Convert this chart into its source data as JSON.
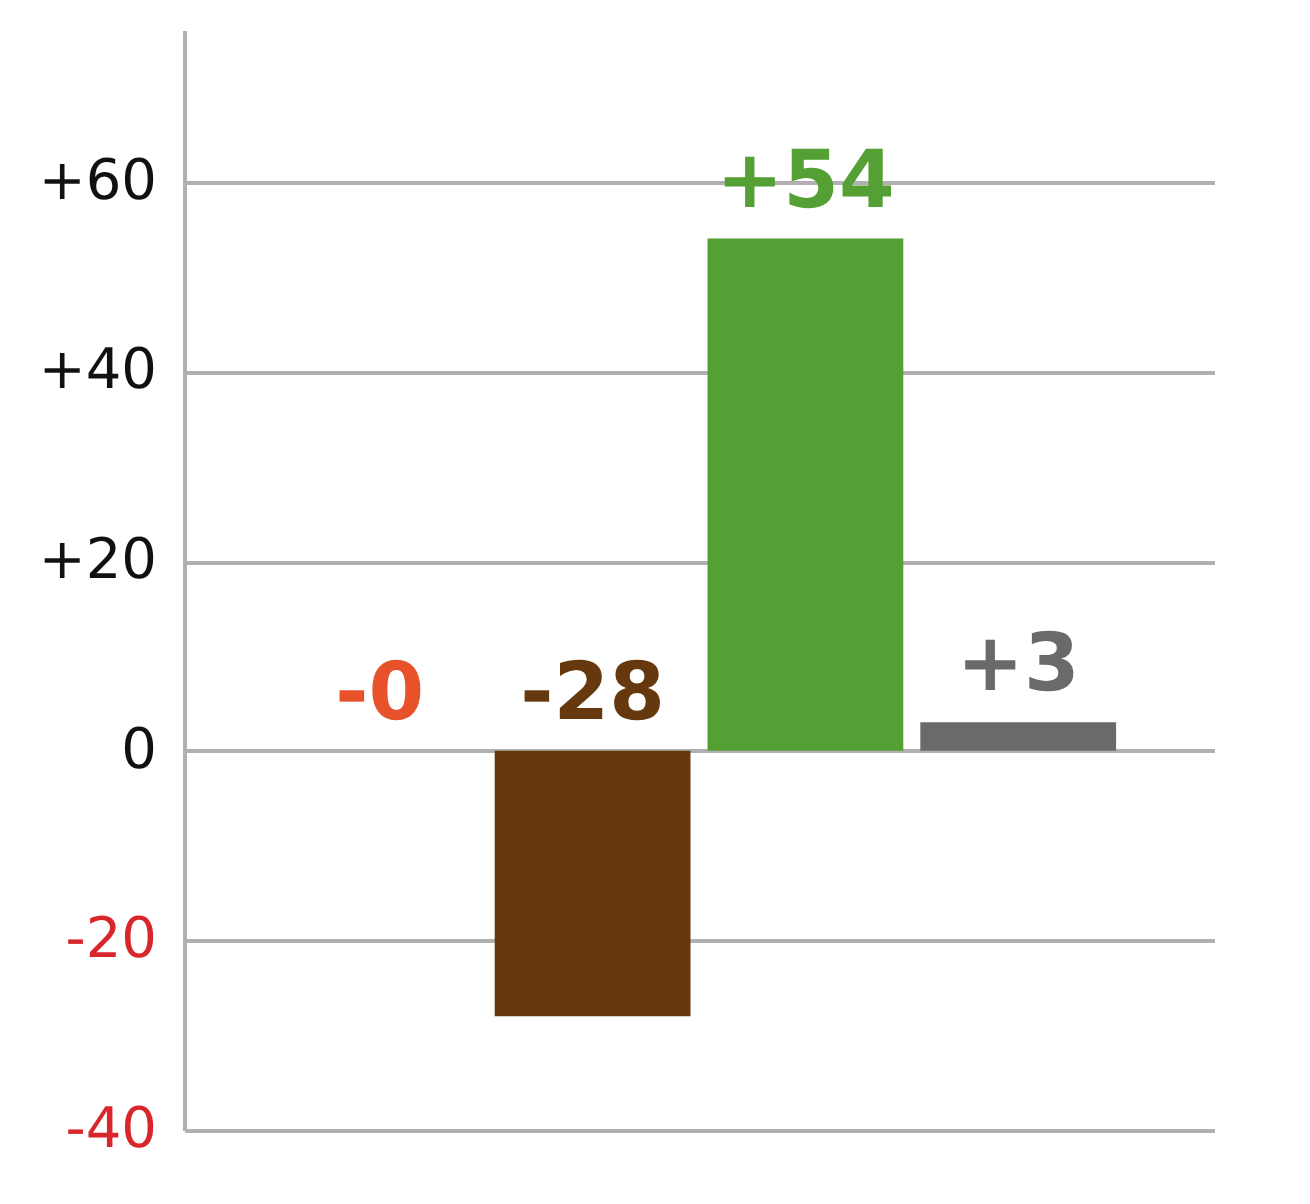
{
  "chart_data": {
    "type": "bar",
    "categories": [
      null,
      null,
      null,
      null
    ],
    "values": [
      0,
      -28,
      54,
      3
    ],
    "colors": [
      "#e8522a",
      "#66380e",
      "#55a034",
      "#6a6a6a"
    ],
    "value_labels": [
      "-0",
      "-28",
      "+54",
      "+3"
    ],
    "ylim": [
      -40,
      76
    ],
    "yticks": [
      {
        "value": -40,
        "label": "-40"
      },
      {
        "value": -20,
        "label": "-20"
      },
      0,
      {
        "value": 20,
        "label": "+20"
      },
      {
        "value": 40,
        "label": "+40"
      },
      {
        "value": 60,
        "label": "+60"
      }
    ],
    "grid": "y"
  }
}
